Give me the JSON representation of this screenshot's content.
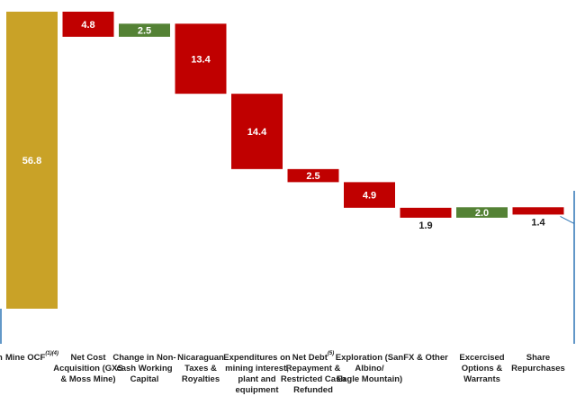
{
  "chart_data": {
    "type": "bar",
    "subtype": "waterfall",
    "categories": [
      {
        "lines": [
          "Mine OCF"
        ],
        "superscript": "(1)(4)"
      },
      {
        "lines": [
          "Net Cost",
          "Acquisition (GXS",
          "& Moss Mine)"
        ],
        "superscript": ""
      },
      {
        "lines": [
          "Change in Non-",
          "cash Working",
          "Capital"
        ],
        "superscript": ""
      },
      {
        "lines": [
          "Nicaraguan",
          "Taxes &",
          "Royalties"
        ],
        "superscript": ""
      },
      {
        "lines": [
          "Expenditures on",
          "mining interest,",
          "plant and",
          "equipment"
        ],
        "superscript": ""
      },
      {
        "lines": [
          "Net Debt",
          "Repayment &",
          "Restricted Cash",
          "Refunded"
        ],
        "superscript": "(5)"
      },
      {
        "lines": [
          "Exploration (San",
          "Albino/",
          "Eagle Mountain)"
        ],
        "superscript": ""
      },
      {
        "lines": [
          "FX & Other"
        ],
        "superscript": ""
      },
      {
        "lines": [
          "Excercised",
          "Options &",
          "Warrants"
        ],
        "superscript": ""
      },
      {
        "lines": [
          "Share",
          "Repurchases"
        ],
        "superscript": ""
      }
    ],
    "values": [
      56.8,
      -4.8,
      2.5,
      -13.4,
      -14.4,
      -2.5,
      -4.9,
      -1.9,
      2.0,
      -1.4
    ],
    "value_labels": [
      "56.8",
      "4.8",
      "2.5",
      "13.4",
      "14.4",
      "2.5",
      "4.9",
      "1.9",
      "2.0",
      "1.4"
    ],
    "bar_kinds": [
      "total",
      "decrease",
      "increase",
      "decrease",
      "decrease",
      "decrease",
      "decrease",
      "decrease",
      "increase",
      "decrease"
    ],
    "ylim": [
      0,
      58
    ],
    "colors": {
      "total": "#c9a227",
      "decrease": "#c00000",
      "increase": "#548235"
    },
    "left_edge_label": "n",
    "grid": false,
    "legend": "none"
  }
}
